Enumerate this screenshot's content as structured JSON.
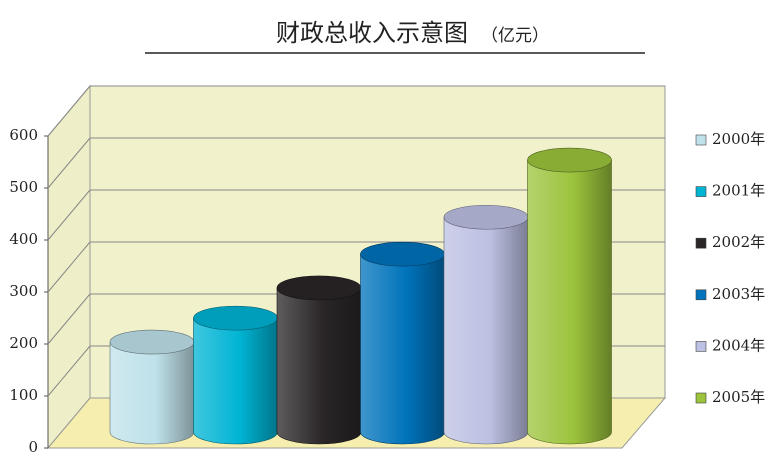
{
  "chart_data": {
    "type": "bar",
    "title": "财政总收入示意图",
    "subtitle": "（亿元）",
    "series": [
      {
        "name": "2000年",
        "color": "#bfe1ea",
        "values": [
          173
        ]
      },
      {
        "name": "2001年",
        "color": "#00b4d4",
        "values": [
          219
        ]
      },
      {
        "name": "2002年",
        "color": "#2a2627",
        "values": [
          277
        ]
      },
      {
        "name": "2003年",
        "color": "#0073bb",
        "values": [
          342
        ]
      },
      {
        "name": "2004年",
        "color": "#bcc0e2",
        "values": [
          413
        ]
      },
      {
        "name": "2005年",
        "color": "#9cc33c",
        "values": [
          523
        ]
      }
    ],
    "ylim": [
      0,
      600
    ],
    "yticks": [
      0,
      100,
      200,
      300,
      400,
      500,
      600
    ],
    "grid": true,
    "legend": "right"
  }
}
